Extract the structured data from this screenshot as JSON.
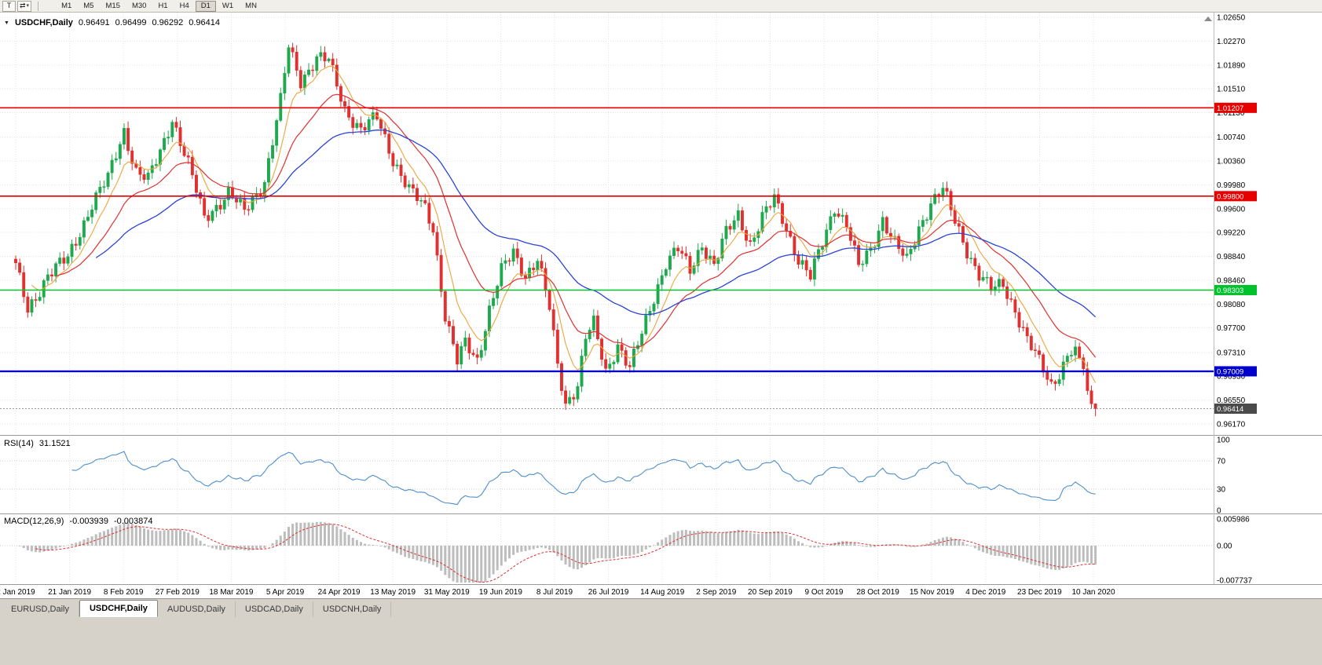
{
  "toolbar": {
    "pointer_label": "T",
    "mode_icon": "⇄",
    "mode_caret": "▾",
    "timeframes": [
      {
        "label": "M1",
        "active": false
      },
      {
        "label": "M5",
        "active": false
      },
      {
        "label": "M15",
        "active": false
      },
      {
        "label": "M30",
        "active": false
      },
      {
        "label": "H1",
        "active": false
      },
      {
        "label": "H4",
        "active": false
      },
      {
        "label": "D1",
        "active": true
      },
      {
        "label": "W1",
        "active": false
      },
      {
        "label": "MN",
        "active": false
      }
    ]
  },
  "chart": {
    "menu_icon": "▼",
    "title": "USDCHF,Daily",
    "ohlc": {
      "open": "0.96491",
      "high": "0.96499",
      "low": "0.96292",
      "close": "0.96414"
    },
    "price_axis": {
      "max": 1.0265,
      "min": 0.9617,
      "ticks": [
        "1.02650",
        "1.02270",
        "1.01890",
        "1.01510",
        "1.01130",
        "1.00740",
        "1.00360",
        "0.99980",
        "0.99600",
        "0.99220",
        "0.98840",
        "0.98460",
        "0.98080",
        "0.97700",
        "0.97310",
        "0.96930",
        "0.96550",
        "0.96170"
      ]
    },
    "date_axis": {
      "labels": [
        "2 Jan 2019",
        "21 Jan 2019",
        "8 Feb 2019",
        "27 Feb 2019",
        "18 Mar 2019",
        "5 Apr 2019",
        "24 Apr 2019",
        "13 May 2019",
        "31 May 2019",
        "19 Jun 2019",
        "8 Jul 2019",
        "26 Jul 2019",
        "14 Aug 2019",
        "2 Sep 2019",
        "20 Sep 2019",
        "9 Oct 2019",
        "28 Oct 2019",
        "15 Nov 2019",
        "4 Dec 2019",
        "23 Dec 2019",
        "10 Jan 2020"
      ]
    },
    "levels": [
      {
        "name": "resistance-1",
        "value": "1.01207",
        "price": 1.01207,
        "color": "#e60000",
        "width": 1.6
      },
      {
        "name": "resistance-2",
        "value": "0.99800",
        "price": 0.998,
        "color": "#e60000",
        "width": 1.6
      },
      {
        "name": "support-1",
        "value": "0.98303",
        "price": 0.98303,
        "color": "#00c22d",
        "width": 1.6
      },
      {
        "name": "support-2",
        "value": "0.97009",
        "price": 0.97009,
        "color": "#0000cc",
        "width": 2.4
      }
    ],
    "last_price": {
      "value": "0.96414",
      "price": 0.96414,
      "badge_color": "#4a4a4a"
    }
  },
  "indicators": {
    "rsi": {
      "label": "RSI(14)",
      "value": "31.1521",
      "axis_labels": [
        "100",
        "70",
        "30",
        "0"
      ],
      "levels": [
        70,
        30
      ],
      "line_color": "#4d8fcc"
    },
    "macd": {
      "label": "MACD(12,26,9)",
      "value_macd": "-0.003939",
      "value_signal": "-0.003874",
      "axis_labels": [
        "0.005986",
        "0.00",
        "-0.007737"
      ],
      "range_max": 0.005986,
      "range_min": -0.007737,
      "histogram_color": "#bdbdbd",
      "signal_color": "#e03030"
    }
  },
  "tabs": [
    {
      "label": "EURUSD,Daily",
      "active": false
    },
    {
      "label": "USDCHF,Daily",
      "active": true
    },
    {
      "label": "AUDUSD,Daily",
      "active": false
    },
    {
      "label": "USDCAD,Daily",
      "active": false
    },
    {
      "label": "USDCNH,Daily",
      "active": false
    }
  ],
  "chart_data": {
    "type": "candlestick",
    "symbol": "USDCHF",
    "timeframe": "Daily",
    "x_start_label": "2 Jan 2019",
    "x_end_label": "10 Jan 2020",
    "ylim": [
      0.9617,
      1.0265
    ],
    "price_anchors": [
      [
        0,
        0.9868
      ],
      [
        3,
        0.9798
      ],
      [
        8,
        0.9855
      ],
      [
        13,
        0.988
      ],
      [
        19,
        0.9968
      ],
      [
        23,
        1.0008
      ],
      [
        27,
        1.0085
      ],
      [
        30,
        1.002
      ],
      [
        33,
        1.0005
      ],
      [
        36,
        1.005
      ],
      [
        39,
        1.0105
      ],
      [
        43,
        1.003
      ],
      [
        47,
        0.9945
      ],
      [
        53,
        0.9985
      ],
      [
        57,
        0.9955
      ],
      [
        62,
        1.0005
      ],
      [
        66,
        1.013
      ],
      [
        68,
        1.0218
      ],
      [
        71,
        1.0165
      ],
      [
        75,
        1.02
      ],
      [
        78,
        1.0195
      ],
      [
        82,
        1.012
      ],
      [
        86,
        1.0085
      ],
      [
        90,
        1.0105
      ],
      [
        94,
        1.004
      ],
      [
        98,
        0.999
      ],
      [
        102,
        0.996
      ],
      [
        104,
        0.993
      ],
      [
        107,
        0.979
      ],
      [
        110,
        0.9715
      ],
      [
        112,
        0.9745
      ],
      [
        115,
        0.972
      ],
      [
        118,
        0.98
      ],
      [
        121,
        0.986
      ],
      [
        124,
        0.989
      ],
      [
        127,
        0.9855
      ],
      [
        130,
        0.988
      ],
      [
        133,
        0.98
      ],
      [
        135,
        0.971
      ],
      [
        137,
        0.965
      ],
      [
        140,
        0.968
      ],
      [
        142,
        0.9755
      ],
      [
        144,
        0.9775
      ],
      [
        147,
        0.97
      ],
      [
        150,
        0.9745
      ],
      [
        153,
        0.9705
      ],
      [
        156,
        0.976
      ],
      [
        159,
        0.982
      ],
      [
        162,
        0.9875
      ],
      [
        165,
        0.9895
      ],
      [
        168,
        0.986
      ],
      [
        171,
        0.9905
      ],
      [
        174,
        0.987
      ],
      [
        177,
        0.992
      ],
      [
        180,
        0.995
      ],
      [
        183,
        0.9905
      ],
      [
        186,
        0.9945
      ],
      [
        189,
        0.9975
      ],
      [
        192,
        0.993
      ],
      [
        195,
        0.988
      ],
      [
        198,
        0.985
      ],
      [
        201,
        0.9905
      ],
      [
        204,
        0.9965
      ],
      [
        207,
        0.9935
      ],
      [
        210,
        0.9865
      ],
      [
        213,
        0.9895
      ],
      [
        216,
        0.9945
      ],
      [
        219,
        0.9905
      ],
      [
        222,
        0.9875
      ],
      [
        225,
        0.993
      ],
      [
        228,
        0.997
      ],
      [
        231,
        0.999
      ],
      [
        234,
        0.994
      ],
      [
        237,
        0.9895
      ],
      [
        240,
        0.9855
      ],
      [
        243,
        0.983
      ],
      [
        246,
        0.984
      ],
      [
        249,
        0.98
      ],
      [
        252,
        0.975
      ],
      [
        255,
        0.9715
      ],
      [
        258,
        0.968
      ],
      [
        260,
        0.97
      ],
      [
        262,
        0.9725
      ],
      [
        264,
        0.974
      ],
      [
        266,
        0.9705
      ],
      [
        267,
        0.967
      ],
      [
        268,
        0.96491
      ],
      [
        269,
        0.96414
      ]
    ],
    "colors": {
      "bull": "#1fa94e",
      "bear": "#e03131"
    },
    "overlays": [
      {
        "name": "ma-fast",
        "period": 8,
        "color": "#eda53c",
        "width": 1.1,
        "draw_from": 4
      },
      {
        "name": "ma-mid",
        "period": 21,
        "color": "#e03030",
        "width": 1.2,
        "draw_from": 10
      },
      {
        "name": "ma-slow",
        "period": 50,
        "color": "#2b43d6",
        "width": 1.3,
        "draw_from": 20
      }
    ]
  }
}
